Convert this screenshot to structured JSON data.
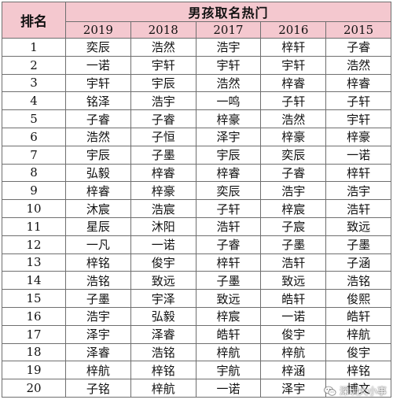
{
  "table": {
    "rank_header": "排名",
    "title": "男孩取名热门",
    "years": [
      "2019",
      "2018",
      "2017",
      "2016",
      "2015"
    ],
    "rows": [
      {
        "rank": "1",
        "names": [
          "奕辰",
          "浩然",
          "浩宇",
          "梓轩",
          "子睿"
        ]
      },
      {
        "rank": "2",
        "names": [
          "一诺",
          "宇轩",
          "宇轩",
          "宇轩",
          "浩然"
        ]
      },
      {
        "rank": "3",
        "names": [
          "宇轩",
          "宇辰",
          "浩然",
          "梓睿",
          "梓睿"
        ]
      },
      {
        "rank": "4",
        "names": [
          "铭泽",
          "浩宇",
          "一鸣",
          "子轩",
          "子轩"
        ]
      },
      {
        "rank": "5",
        "names": [
          "子睿",
          "子睿",
          "梓豪",
          "浩然",
          "宇轩"
        ]
      },
      {
        "rank": "6",
        "names": [
          "浩然",
          "子恒",
          "泽宇",
          "梓豪",
          "梓豪"
        ]
      },
      {
        "rank": "7",
        "names": [
          "宇辰",
          "子墨",
          "宇辰",
          "奕辰",
          "一诺"
        ]
      },
      {
        "rank": "8",
        "names": [
          "弘毅",
          "梓睿",
          "梓睿",
          "子睿",
          "梓轩"
        ]
      },
      {
        "rank": "9",
        "names": [
          "梓睿",
          "梓豪",
          "奕辰",
          "浩宇",
          "浩宇"
        ]
      },
      {
        "rank": "10",
        "names": [
          "沐宸",
          "浩宸",
          "子轩",
          "梓宸",
          "浩轩"
        ]
      },
      {
        "rank": "11",
        "names": [
          "星辰",
          "沐阳",
          "浩轩",
          "子宸",
          "致远"
        ]
      },
      {
        "rank": "12",
        "names": [
          "一凡",
          "一诺",
          "子睿",
          "子墨",
          "子墨"
        ]
      },
      {
        "rank": "13",
        "names": [
          "梓铭",
          "俊宇",
          "梓轩",
          "浩轩",
          "子涵"
        ]
      },
      {
        "rank": "14",
        "names": [
          "浩铭",
          "致远",
          "子墨",
          "致远",
          "浩铭"
        ]
      },
      {
        "rank": "15",
        "names": [
          "子墨",
          "宇泽",
          "致远",
          "皓轩",
          "俊熙"
        ]
      },
      {
        "rank": "16",
        "names": [
          "浩宇",
          "弘毅",
          "梓宸",
          "一诺",
          "皓轩"
        ]
      },
      {
        "rank": "17",
        "names": [
          "泽宇",
          "泽睿",
          "皓轩",
          "俊宇",
          "梓航"
        ]
      },
      {
        "rank": "18",
        "names": [
          "泽睿",
          "浩铭",
          "梓航",
          "梓航",
          "俊宇"
        ]
      },
      {
        "rank": "19",
        "names": [
          "梓航",
          "梓铭",
          "宇航",
          "梓涵",
          "梓铭"
        ]
      },
      {
        "rank": "20",
        "names": [
          "子铭",
          "梓航",
          "一诺",
          "泽宇",
          "博文"
        ]
      }
    ]
  },
  "watermark": {
    "text": "深圳大小事",
    "icon": "wechat-icon"
  },
  "colors": {
    "header_bg": "#f4c8cf",
    "border": "#6f6f6f",
    "text": "#111111"
  }
}
